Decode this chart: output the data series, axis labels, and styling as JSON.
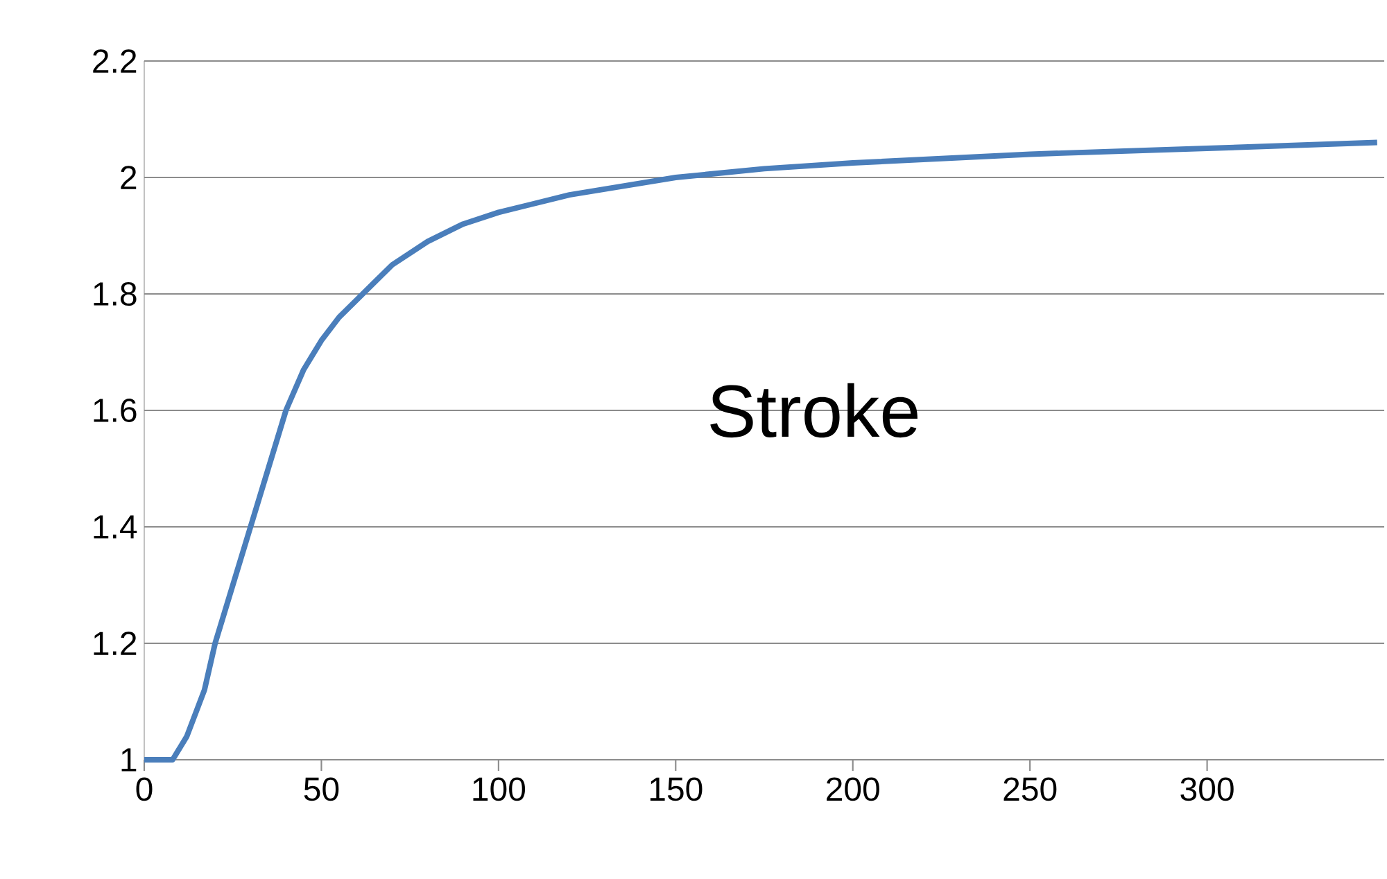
{
  "chart_data": {
    "type": "line",
    "annotations": [
      "Stroke"
    ],
    "x": [
      0,
      8,
      12,
      17,
      20,
      25,
      30,
      35,
      40,
      45,
      50,
      55,
      60,
      65,
      70,
      80,
      90,
      100,
      120,
      150,
      175,
      200,
      250,
      300,
      348
    ],
    "series": [
      {
        "color": "#4a7ebb",
        "values": [
          1,
          1,
          1.04,
          1.12,
          1.2,
          1.3,
          1.4,
          1.5,
          1.6,
          1.67,
          1.72,
          1.76,
          1.79,
          1.82,
          1.85,
          1.89,
          1.92,
          1.94,
          1.97,
          2.0,
          2.015,
          2.025,
          2.04,
          2.05,
          2.06
        ]
      }
    ],
    "xlim": [
      0,
      350
    ],
    "xticks": [
      0,
      50,
      100,
      150,
      200,
      250,
      300
    ],
    "ylim": [
      1,
      2.2
    ],
    "yticks": [
      1,
      1.2,
      1.4,
      1.6,
      1.8,
      2,
      2.2
    ],
    "grid": "y",
    "marker": "none",
    "line_style": "solid"
  }
}
